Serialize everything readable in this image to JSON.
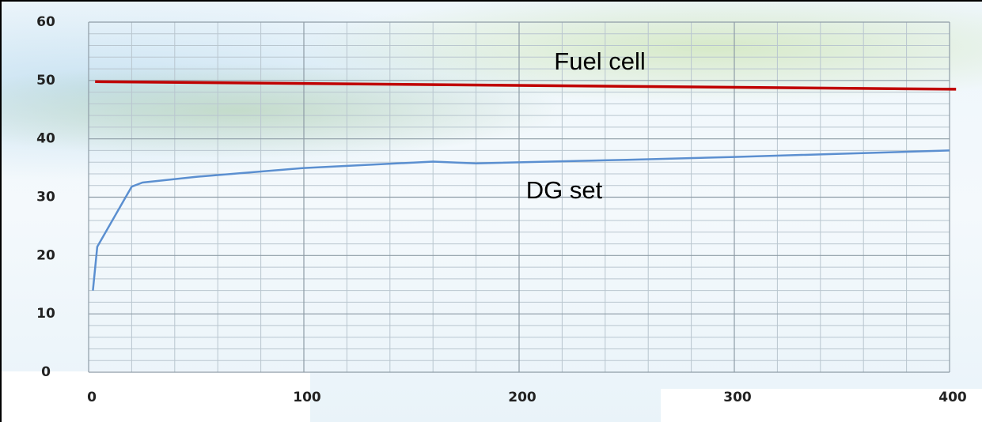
{
  "chart_data": {
    "type": "line",
    "xlim": [
      0,
      400
    ],
    "xticks": [
      0,
      100,
      200,
      300,
      400
    ],
    "ylim": [
      0,
      60
    ],
    "yticks": [
      0,
      10,
      20,
      30,
      40,
      50,
      60
    ],
    "grid": true,
    "minor_divisions": {
      "x": 5,
      "y": 5
    },
    "series": [
      {
        "name": "Fuel cell",
        "color": "#c00000",
        "x": [
          3,
          403
        ],
        "values": [
          49.8,
          48.5
        ]
      },
      {
        "name": "DG set",
        "color": "#5b8fd0",
        "x": [
          2,
          4,
          20,
          25,
          50,
          100,
          160,
          180,
          250,
          300,
          400
        ],
        "values": [
          14,
          21.5,
          31.8,
          32.5,
          33.5,
          35,
          36.1,
          35.8,
          36.4,
          36.9,
          38
        ]
      }
    ]
  }
}
